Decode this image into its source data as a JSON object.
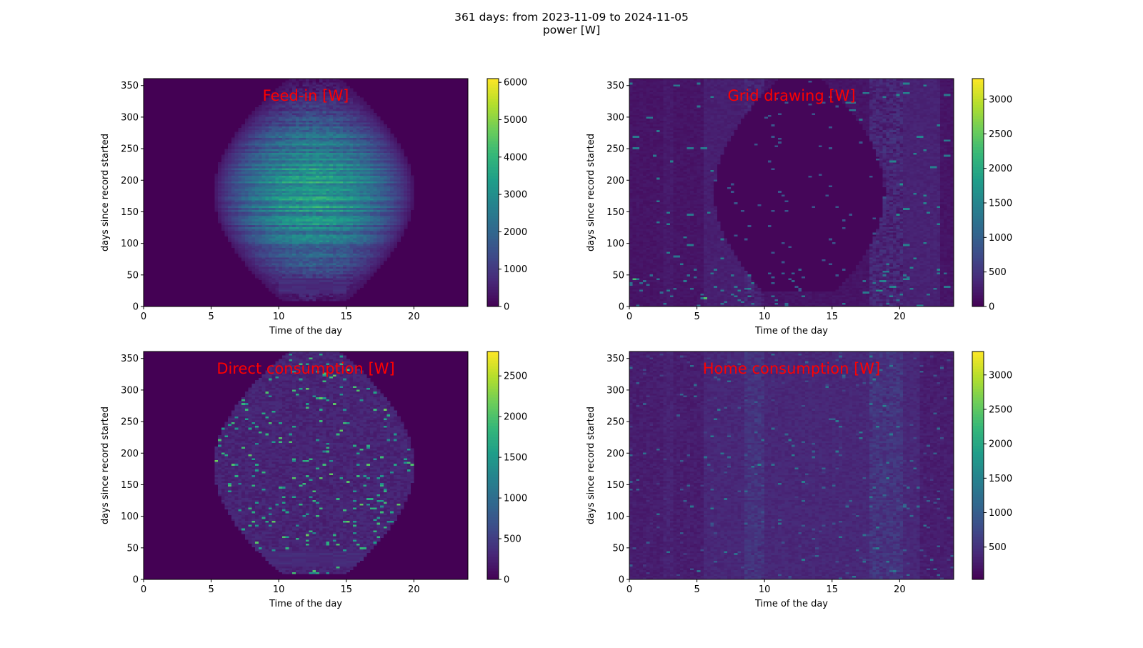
{
  "figure": {
    "title_line1": "361 days: from 2023-11-09 to 2024-11-05",
    "title_line2": "power [W]"
  },
  "chart_data": [
    {
      "type": "heatmap",
      "title": "Feed-in [W]",
      "xlabel": "Time of the day",
      "ylabel": "days since record started",
      "xlim": [
        0,
        24
      ],
      "ylim": [
        0,
        361
      ],
      "xticks": [
        0,
        5,
        10,
        15,
        20
      ],
      "yticks": [
        0,
        50,
        100,
        150,
        200,
        250,
        300,
        350
      ],
      "colormap": "viridis",
      "colorbar": {
        "min": 0,
        "max": 6100,
        "ticks": [
          0,
          1000,
          2000,
          3000,
          4000,
          5000,
          6000
        ]
      }
    },
    {
      "type": "heatmap",
      "title": "Grid drawing [W]",
      "xlabel": "Time of the day",
      "ylabel": "days since record started",
      "xlim": [
        0,
        24
      ],
      "ylim": [
        0,
        361
      ],
      "xticks": [
        0,
        5,
        10,
        15,
        20
      ],
      "yticks": [
        0,
        50,
        100,
        150,
        200,
        250,
        300,
        350
      ],
      "colormap": "viridis",
      "colorbar": {
        "min": 0,
        "max": 3300,
        "ticks": [
          0,
          500,
          1000,
          1500,
          2000,
          2500,
          3000
        ]
      }
    },
    {
      "type": "heatmap",
      "title": "Direct consumption [W]",
      "xlabel": "Time of the day",
      "ylabel": "days since record started",
      "xlim": [
        0,
        24
      ],
      "ylim": [
        0,
        361
      ],
      "xticks": [
        0,
        5,
        10,
        15,
        20
      ],
      "yticks": [
        0,
        50,
        100,
        150,
        200,
        250,
        300,
        350
      ],
      "colormap": "viridis",
      "colorbar": {
        "min": 0,
        "max": 2800,
        "ticks": [
          0,
          500,
          1000,
          1500,
          2000,
          2500
        ]
      }
    },
    {
      "type": "heatmap",
      "title": "Home consumption [W]",
      "xlabel": "Time of the day",
      "ylabel": "days since record started",
      "xlim": [
        0,
        24
      ],
      "ylim": [
        0,
        361
      ],
      "xticks": [
        0,
        5,
        10,
        15,
        20
      ],
      "yticks": [
        0,
        50,
        100,
        150,
        200,
        250,
        300,
        350
      ],
      "colormap": "viridis",
      "colorbar": {
        "min": 30,
        "max": 3340,
        "ticks": [
          500,
          1000,
          1500,
          2000,
          2500,
          3000
        ]
      }
    }
  ],
  "colors": {
    "title_overlay": "#ff0000"
  }
}
